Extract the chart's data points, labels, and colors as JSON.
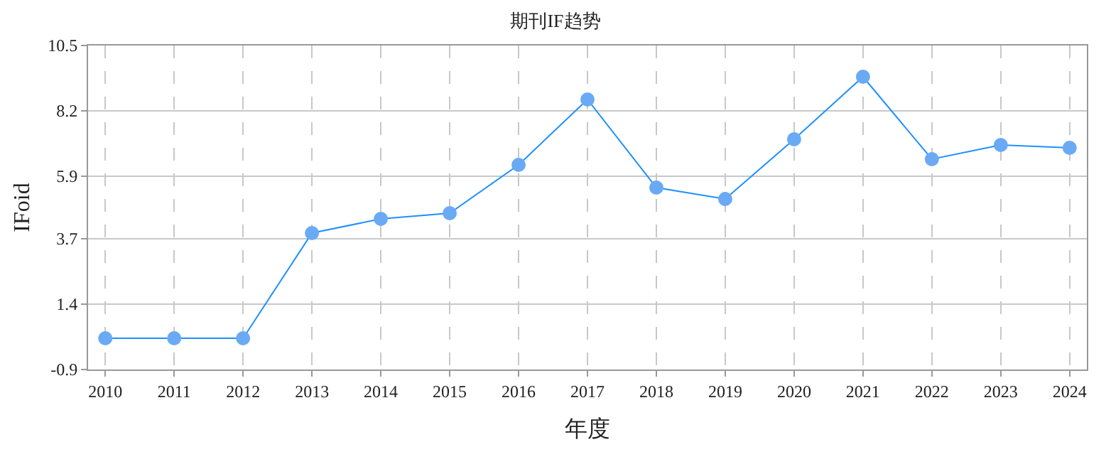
{
  "chart_data": {
    "type": "line",
    "title": "期刊IF趋势",
    "xlabel": "年度",
    "ylabel": "IFoid",
    "categories": [
      "2010",
      "2011",
      "2012",
      "2013",
      "2014",
      "2015",
      "2016",
      "2017",
      "2018",
      "2019",
      "2020",
      "2021",
      "2022",
      "2023",
      "2024"
    ],
    "series": [
      {
        "color": "#1e90ff",
        "values": [
          0.2,
          0.2,
          0.2,
          3.9,
          4.4,
          4.6,
          6.3,
          8.6,
          5.5,
          5.1,
          7.2,
          9.4,
          6.5,
          7.0,
          6.9
        ]
      }
    ],
    "ylim": [
      -0.9,
      10.5
    ],
    "yticks": [
      -0.9,
      1.4,
      3.7,
      5.9,
      8.2,
      10.5
    ],
    "grid": true,
    "marker": "circle",
    "line_style": "solid",
    "legend": false
  }
}
